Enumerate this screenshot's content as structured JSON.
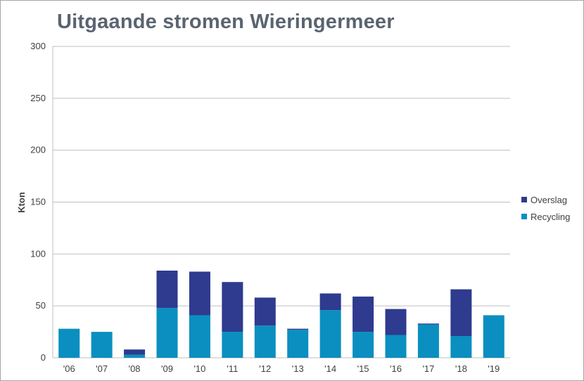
{
  "chart_data": {
    "type": "bar",
    "stacked": true,
    "title": "Uitgaande stromen Wieringermeer",
    "xlabel": "",
    "ylabel": "Kton",
    "ylim": [
      0,
      300
    ],
    "yticks": [
      0,
      50,
      100,
      150,
      200,
      250,
      300
    ],
    "grid": true,
    "legend_position": "right",
    "categories": [
      "'06",
      "'07",
      "'08",
      "'09",
      "'10",
      "'11",
      "'12",
      "'13",
      "'14",
      "'15",
      "'16",
      "'17",
      "'18",
      "'19"
    ],
    "series": [
      {
        "name": "Recycling",
        "color": "#0a8fc0",
        "values": [
          28,
          25,
          3,
          48,
          41,
          25,
          31,
          27,
          46,
          25,
          22,
          32,
          21,
          41
        ]
      },
      {
        "name": "Overslag",
        "color": "#2e3b8e",
        "values": [
          0,
          0,
          5,
          36,
          42,
          48,
          27,
          1,
          16,
          34,
          25,
          1,
          45,
          0
        ]
      }
    ],
    "legend_order": [
      "Overslag",
      "Recycling"
    ]
  }
}
